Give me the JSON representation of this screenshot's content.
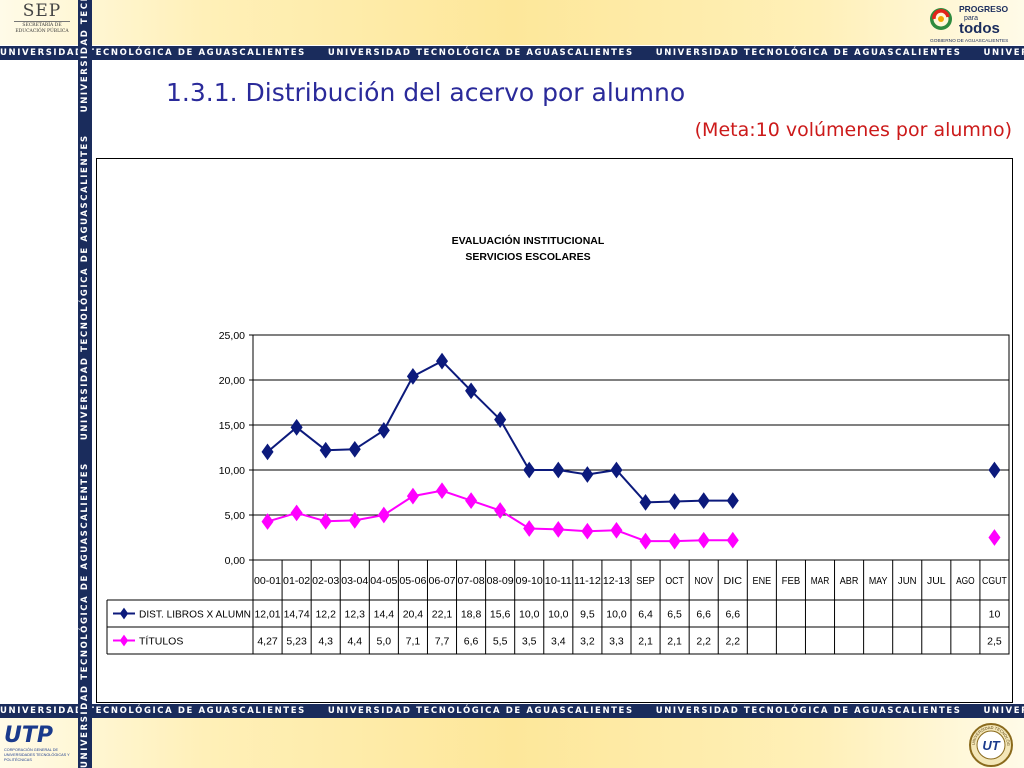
{
  "header": {
    "sep_logo": {
      "main": "SEP",
      "sub": "SECRETARÍA DE EDUCACIÓN PÚBLICA"
    },
    "progreso_logo": {
      "line1": "PROGRESO",
      "line2": "para",
      "line3": "todos",
      "sub": "GOBIERNO DE AGUASCALIENTES"
    },
    "banner_text": "UNIVERSIDAD TECNOLÓGICA DE AGUASCALIENTES"
  },
  "footer": {
    "utp_logo": {
      "main": "UTP",
      "sub": "CORPORACIÓN GENERAL DE UNIVERSIDADES TECNOLÓGICAS Y POLITÉCNICAS"
    },
    "seal": {
      "text": "UNIVERSIDAD TECNOLÓGICA",
      "initials": "UT"
    }
  },
  "slide": {
    "title": "1.3.1. Distribución del acervo por alumno",
    "subtitle": "(Meta:10 volúmenes por alumno)"
  },
  "colors": {
    "band": "#1a2c5c",
    "title": "#2a2a9a",
    "subtitle": "#cc1a1a",
    "series_libros": "#0c1a7c",
    "series_titulos": "#ff00ff"
  },
  "chart_data": {
    "type": "line",
    "title": "EVALUACIÓN INSTITUCIONAL",
    "subtitle": "SERVICIOS ESCOLARES",
    "ylim": [
      0,
      25
    ],
    "yticks": [
      "0,00",
      "5,00",
      "10,00",
      "15,00",
      "20,00",
      "25,00"
    ],
    "grid": true,
    "legend": "data-table",
    "categories": [
      "00-01",
      "01-02",
      "02-03",
      "03-04",
      "04-05",
      "05-06",
      "06-07",
      "07-08",
      "08-09",
      "09-10",
      "10-11",
      "11-12",
      "12-13",
      "SEP",
      "OCT",
      "NOV",
      "DIC",
      "ENE",
      "FEB",
      "MAR",
      "ABR",
      "MAY",
      "JUN",
      "JUL",
      "AGO",
      "CGUT"
    ],
    "series": [
      {
        "name": "DIST. LIBROS X ALUMN",
        "color": "#0c1a7c",
        "marker": "diamond",
        "values": [
          12.01,
          14.74,
          12.2,
          12.3,
          14.4,
          20.4,
          22.1,
          18.8,
          15.6,
          10.0,
          10.0,
          9.5,
          10.0,
          6.4,
          6.5,
          6.6,
          6.6,
          null,
          null,
          null,
          null,
          null,
          null,
          null,
          null,
          10
        ],
        "labels": [
          "12,01",
          "14,74",
          "12,2",
          "12,3",
          "14,4",
          "20,4",
          "22,1",
          "18,8",
          "15,6",
          "10,0",
          "10,0",
          "9,5",
          "10,0",
          "6,4",
          "6,5",
          "6,6",
          "6,6",
          "",
          "",
          "",
          "",
          "",
          "",
          "",
          "",
          "10"
        ]
      },
      {
        "name": "TÍTULOS",
        "color": "#ff00ff",
        "marker": "diamond",
        "values": [
          4.27,
          5.23,
          4.3,
          4.4,
          5.0,
          7.1,
          7.7,
          6.6,
          5.5,
          3.5,
          3.4,
          3.2,
          3.3,
          2.1,
          2.1,
          2.2,
          2.2,
          null,
          null,
          null,
          null,
          null,
          null,
          null,
          null,
          2.5
        ],
        "labels": [
          "4,27",
          "5,23",
          "4,3",
          "4,4",
          "5,0",
          "7,1",
          "7,7",
          "6,6",
          "5,5",
          "3,5",
          "3,4",
          "3,2",
          "3,3",
          "2,1",
          "2,1",
          "2,2",
          "2,2",
          "",
          "",
          "",
          "",
          "",
          "",
          "",
          "",
          "2,5"
        ]
      }
    ]
  }
}
